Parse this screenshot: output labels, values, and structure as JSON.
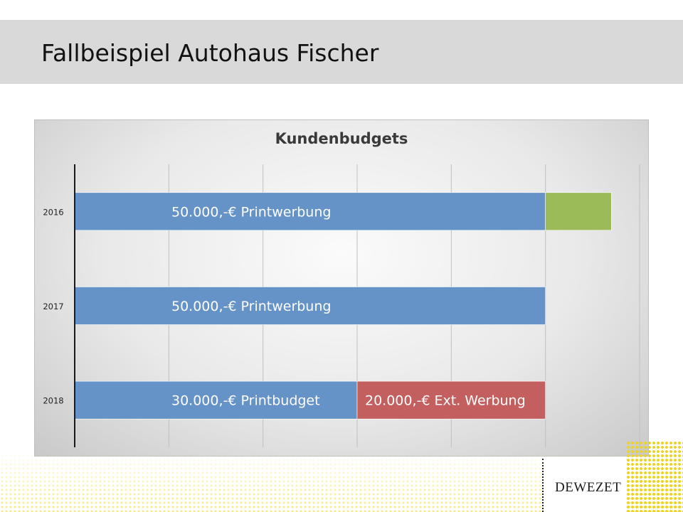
{
  "slide": {
    "title": "Fallbeispiel Autohaus Fischer"
  },
  "logo": {
    "text": "DEWEZET"
  },
  "colors": {
    "print": "#6593c7",
    "extra": "#9bbb59",
    "external": "#c45f5f",
    "title_band": "#d9d9d9",
    "dots": "#ecd31c"
  },
  "chart_data": {
    "type": "bar",
    "orientation": "horizontal",
    "stacked": true,
    "title": "Kundenbudgets",
    "categories": [
      "2016",
      "2017",
      "2018"
    ],
    "series": [
      {
        "color": "#6593c7",
        "values": [
          50000,
          50000,
          30000
        ],
        "labels": [
          "50.000,-€ Printwerbung",
          "50.000,-€ Printwerbung",
          "30.000,-€ Printbudget"
        ]
      },
      {
        "color": "#c45f5f",
        "values": [
          0,
          0,
          20000
        ],
        "labels": [
          "",
          "",
          "20.000,-€ Ext. Werbung"
        ]
      },
      {
        "color": "#9bbb59",
        "values": [
          7000,
          0,
          0
        ],
        "labels": [
          "",
          "",
          ""
        ]
      }
    ],
    "xlim": [
      0,
      60000
    ],
    "x_gridline_step": 10000,
    "x_tick_labels_visible": false,
    "grid": true,
    "legend": "none"
  }
}
